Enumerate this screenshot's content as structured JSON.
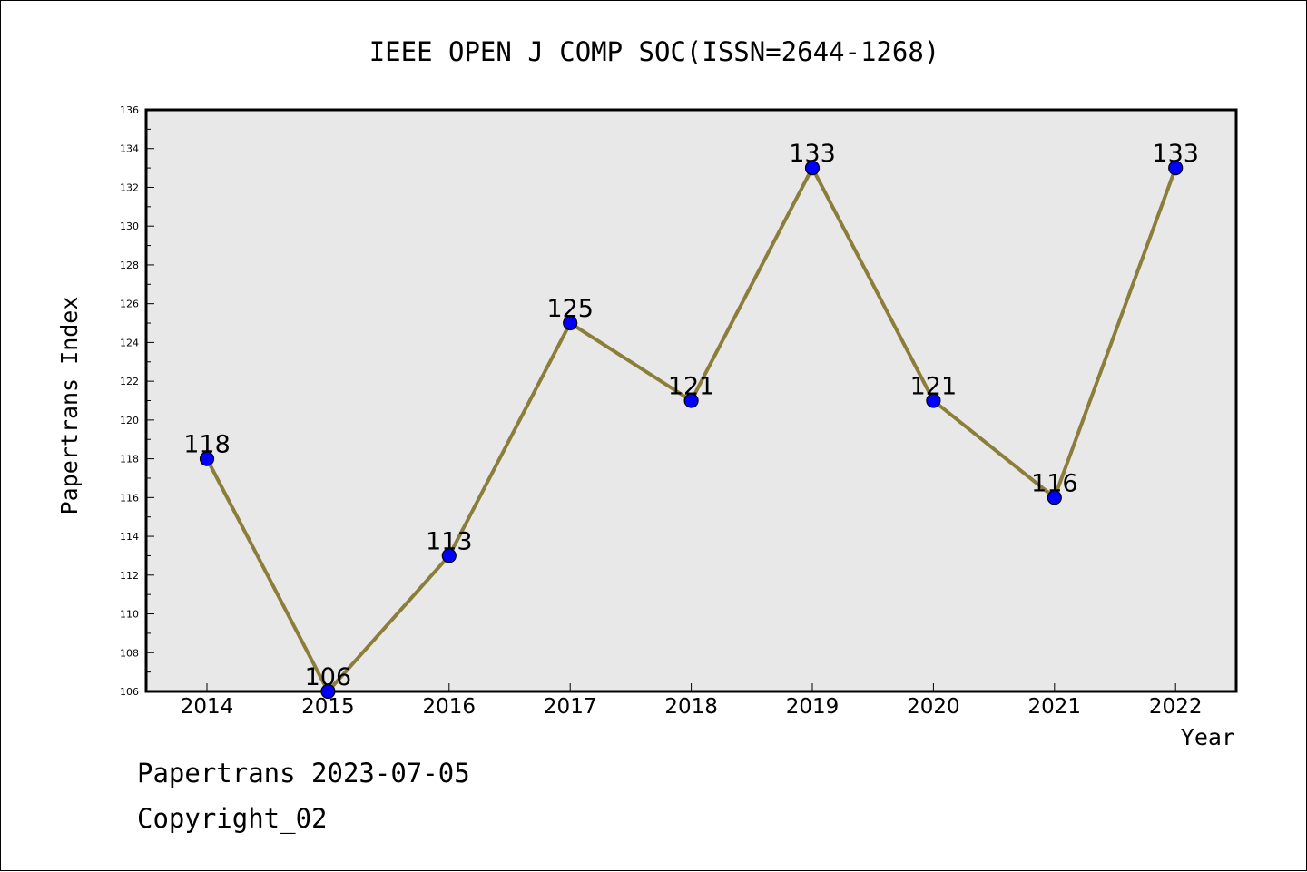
{
  "footer": {
    "date_line": "Papertrans 2023-07-05",
    "copyright_line": "Copyright_02"
  },
  "chart_data": {
    "type": "line",
    "title": "IEEE OPEN J COMP SOC(ISSN=2644-1268)",
    "xlabel": "Year",
    "ylabel": "Papertrans Index",
    "categories": [
      "2014",
      "2015",
      "2016",
      "2017",
      "2018",
      "2019",
      "2020",
      "2021",
      "2022"
    ],
    "series": [
      {
        "values": [
          118,
          106,
          113,
          125,
          121,
          133,
          121,
          116,
          133
        ]
      }
    ],
    "ylim": [
      106,
      136
    ],
    "yticks": [
      106,
      108,
      110,
      112,
      114,
      116,
      118,
      120,
      122,
      124,
      126,
      128,
      130,
      132,
      134,
      136
    ],
    "grid": false,
    "legend": "none",
    "colors": {
      "line": "#8b7d3a",
      "marker": "#0000ff",
      "plot_background": "#e8e8e8"
    }
  }
}
